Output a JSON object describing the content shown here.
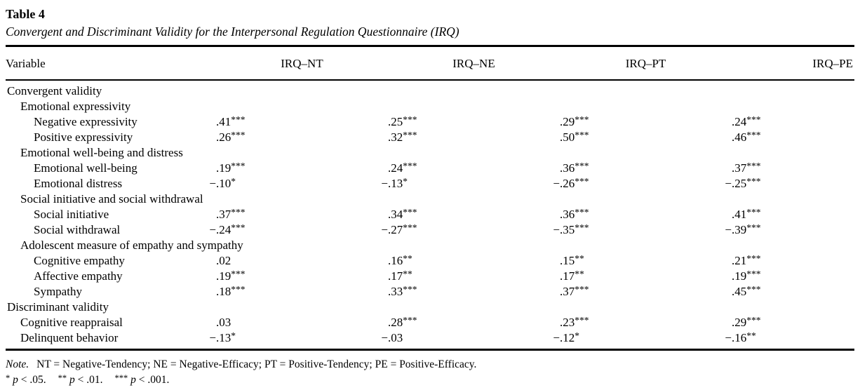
{
  "page": {
    "background": "#ffffff",
    "text_color": "#000000"
  },
  "table": {
    "title": "Table 4",
    "caption": "Convergent and Discriminant Validity for the Interpersonal Regulation Questionnaire (IRQ)",
    "columns": [
      "Variable",
      "IRQ–NT",
      "IRQ–NE",
      "IRQ–PT",
      "IRQ–PE"
    ],
    "rows": [
      {
        "label": "Convergent validity",
        "indent": 0,
        "values": [
          "",
          "",
          "",
          ""
        ]
      },
      {
        "label": "Emotional expressivity",
        "indent": 1,
        "values": [
          "",
          "",
          "",
          ""
        ]
      },
      {
        "label": "Negative expressivity",
        "indent": 2,
        "values": [
          ".41***",
          ".25***",
          ".29***",
          ".24***"
        ]
      },
      {
        "label": "Positive expressivity",
        "indent": 2,
        "values": [
          ".26***",
          ".32***",
          ".50***",
          ".46***"
        ]
      },
      {
        "label": "Emotional well-being and distress",
        "indent": 1,
        "values": [
          "",
          "",
          "",
          ""
        ]
      },
      {
        "label": "Emotional well-being",
        "indent": 2,
        "values": [
          ".19***",
          ".24***",
          ".36***",
          ".37***"
        ]
      },
      {
        "label": "Emotional distress",
        "indent": 2,
        "values": [
          "−.10*",
          "−.13*",
          "−.26***",
          "−.25***"
        ]
      },
      {
        "label": "Social initiative and social withdrawal",
        "indent": 1,
        "values": [
          "",
          "",
          "",
          ""
        ]
      },
      {
        "label": "Social initiative",
        "indent": 2,
        "values": [
          ".37***",
          ".34***",
          ".36***",
          ".41***"
        ]
      },
      {
        "label": "Social withdrawal",
        "indent": 2,
        "values": [
          "−.24***",
          "−.27***",
          "−.35***",
          "−.39***"
        ]
      },
      {
        "label": "Adolescent measure of empathy and sympathy",
        "indent": 1,
        "values": [
          "",
          "",
          "",
          ""
        ]
      },
      {
        "label": "Cognitive empathy",
        "indent": 2,
        "values": [
          ".02",
          ".16**",
          ".15**",
          ".21***"
        ]
      },
      {
        "label": "Affective empathy",
        "indent": 2,
        "values": [
          ".19***",
          ".17**",
          ".17**",
          ".19***"
        ]
      },
      {
        "label": "Sympathy",
        "indent": 2,
        "values": [
          ".18***",
          ".33***",
          ".37***",
          ".45***"
        ]
      },
      {
        "label": "Discriminant validity",
        "indent": 0,
        "values": [
          "",
          "",
          "",
          ""
        ]
      },
      {
        "label": "Cognitive reappraisal",
        "indent": 1,
        "values": [
          ".03",
          ".28***",
          ".23***",
          ".29***"
        ]
      },
      {
        "label": "Delinquent behavior",
        "indent": 1,
        "values": [
          "−.13*",
          "−.03",
          "−.12*",
          "−.16**"
        ]
      }
    ]
  },
  "note": {
    "label": "Note.",
    "text": "NT = Negative-Tendency; NE = Negative-Efficacy; PT = Positive-Tendency; PE = Positive-Efficacy.",
    "significance": [
      {
        "stars": "*",
        "text": "p < .05."
      },
      {
        "stars": "**",
        "text": "p < .01."
      },
      {
        "stars": "***",
        "text": "p < .001."
      }
    ]
  }
}
